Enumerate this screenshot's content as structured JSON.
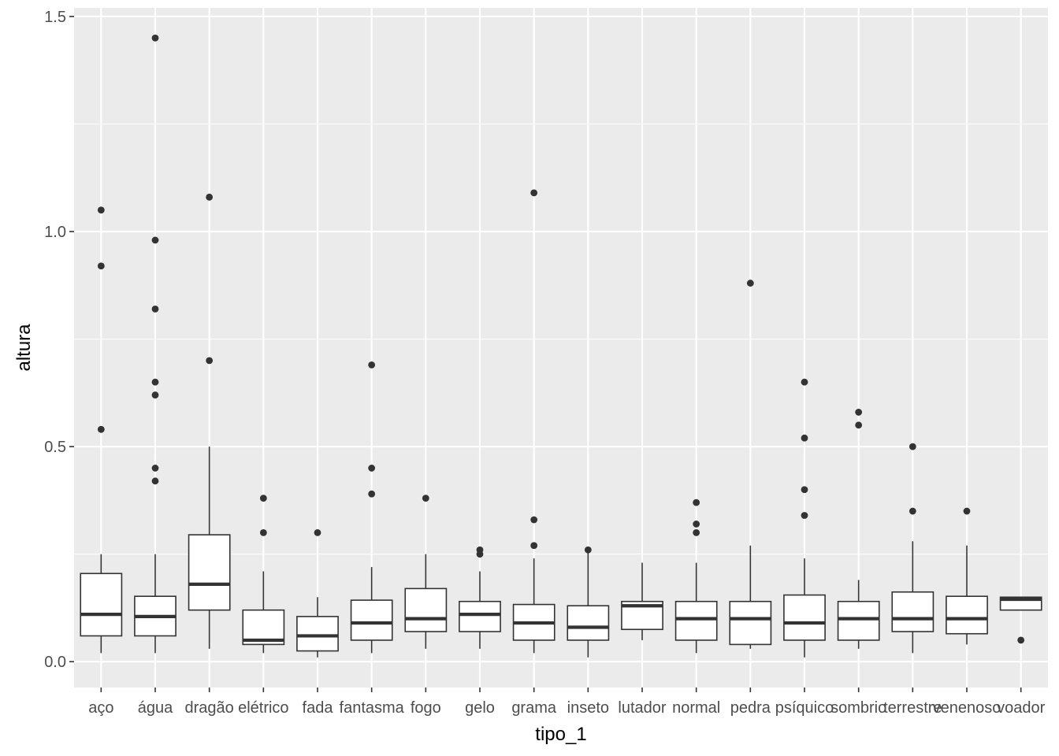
{
  "chart_data": {
    "type": "boxplot",
    "xlabel": "tipo_1",
    "ylabel": "altura",
    "ylim": [
      -0.06,
      1.52
    ],
    "y_ticks": [
      0.0,
      0.5,
      1.0,
      1.5
    ],
    "y_tick_labels": [
      "0.0",
      "0.5",
      "1.0",
      "1.5"
    ],
    "grid": true,
    "colors": {
      "panel": "#EBEBEB",
      "grid_major": "#FFFFFF",
      "box_fill": "#FFFFFF",
      "box_line": "#333333",
      "outlier": "#333333"
    },
    "categories": [
      "aço",
      "água",
      "dragão",
      "elétrico",
      "fada",
      "fantasma",
      "fogo",
      "gelo",
      "grama",
      "inseto",
      "lutador",
      "normal",
      "pedra",
      "psíquico",
      "sombrio",
      "terrestre",
      "venenoso",
      "voador"
    ],
    "boxes": [
      {
        "category": "aço",
        "whisker_low": 0.02,
        "q1": 0.06,
        "median": 0.11,
        "q3": 0.205,
        "whisker_high": 0.25,
        "outliers": [
          1.05,
          0.92,
          0.54
        ]
      },
      {
        "category": "água",
        "whisker_low": 0.02,
        "q1": 0.06,
        "median": 0.105,
        "q3": 0.152,
        "whisker_high": 0.25,
        "outliers": [
          1.45,
          0.98,
          0.82,
          0.65,
          0.62,
          0.45,
          0.42
        ]
      },
      {
        "category": "dragão",
        "whisker_low": 0.03,
        "q1": 0.12,
        "median": 0.18,
        "q3": 0.295,
        "whisker_high": 0.5,
        "outliers": [
          1.08,
          0.7
        ]
      },
      {
        "category": "elétrico",
        "whisker_low": 0.02,
        "q1": 0.04,
        "median": 0.05,
        "q3": 0.12,
        "whisker_high": 0.21,
        "outliers": [
          0.38,
          0.3
        ]
      },
      {
        "category": "fada",
        "whisker_low": 0.01,
        "q1": 0.025,
        "median": 0.06,
        "q3": 0.105,
        "whisker_high": 0.15,
        "outliers": [
          0.3
        ]
      },
      {
        "category": "fantasma",
        "whisker_low": 0.02,
        "q1": 0.05,
        "median": 0.09,
        "q3": 0.143,
        "whisker_high": 0.22,
        "outliers": [
          0.69,
          0.45,
          0.39
        ]
      },
      {
        "category": "fogo",
        "whisker_low": 0.03,
        "q1": 0.07,
        "median": 0.1,
        "q3": 0.17,
        "whisker_high": 0.25,
        "outliers": [
          0.38
        ]
      },
      {
        "category": "gelo",
        "whisker_low": 0.03,
        "q1": 0.07,
        "median": 0.11,
        "q3": 0.14,
        "whisker_high": 0.21,
        "outliers": [
          0.26,
          0.25
        ]
      },
      {
        "category": "grama",
        "whisker_low": 0.02,
        "q1": 0.05,
        "median": 0.09,
        "q3": 0.133,
        "whisker_high": 0.24,
        "outliers": [
          1.09,
          0.33,
          0.27
        ]
      },
      {
        "category": "inseto",
        "whisker_low": 0.01,
        "q1": 0.05,
        "median": 0.08,
        "q3": 0.13,
        "whisker_high": 0.26,
        "outliers": [
          0.26
        ]
      },
      {
        "category": "lutador",
        "whisker_low": 0.05,
        "q1": 0.075,
        "median": 0.13,
        "q3": 0.14,
        "whisker_high": 0.23,
        "outliers": []
      },
      {
        "category": "normal",
        "whisker_low": 0.02,
        "q1": 0.05,
        "median": 0.1,
        "q3": 0.14,
        "whisker_high": 0.23,
        "outliers": [
          0.37,
          0.32,
          0.3
        ]
      },
      {
        "category": "pedra",
        "whisker_low": 0.03,
        "q1": 0.04,
        "median": 0.1,
        "q3": 0.14,
        "whisker_high": 0.27,
        "outliers": [
          0.88
        ]
      },
      {
        "category": "psíquico",
        "whisker_low": 0.01,
        "q1": 0.05,
        "median": 0.09,
        "q3": 0.155,
        "whisker_high": 0.24,
        "outliers": [
          0.65,
          0.52,
          0.4,
          0.34
        ]
      },
      {
        "category": "sombrio",
        "whisker_low": 0.03,
        "q1": 0.05,
        "median": 0.1,
        "q3": 0.14,
        "whisker_high": 0.19,
        "outliers": [
          0.58,
          0.55
        ]
      },
      {
        "category": "terrestre",
        "whisker_low": 0.02,
        "q1": 0.07,
        "median": 0.1,
        "q3": 0.162,
        "whisker_high": 0.28,
        "outliers": [
          0.5,
          0.35
        ]
      },
      {
        "category": "venenoso",
        "whisker_low": 0.04,
        "q1": 0.065,
        "median": 0.1,
        "q3": 0.152,
        "whisker_high": 0.27,
        "outliers": [
          0.35
        ]
      },
      {
        "category": "voador",
        "whisker_low": 0.12,
        "q1": 0.12,
        "median": 0.145,
        "q3": 0.15,
        "whisker_high": 0.15,
        "outliers": [
          0.05
        ]
      }
    ]
  }
}
